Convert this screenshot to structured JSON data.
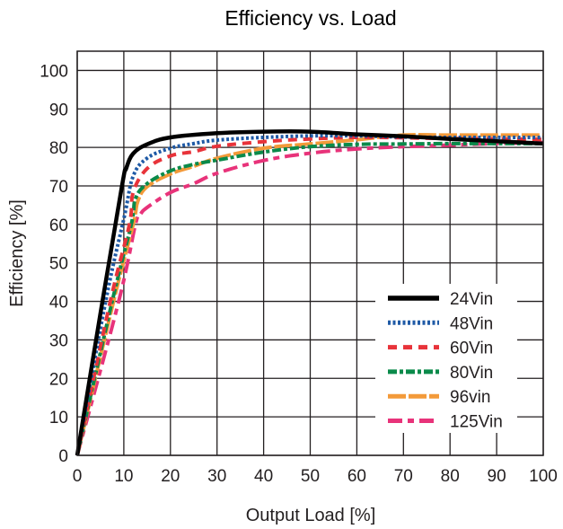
{
  "chart_data": {
    "type": "line",
    "title": "Efficiency vs. Load",
    "xlabel": "Output Load [%]",
    "ylabel": "Efficiency [%]",
    "xlim": [
      0,
      100
    ],
    "ylim": [
      0,
      105
    ],
    "xticks": [
      0,
      10,
      20,
      30,
      40,
      50,
      60,
      70,
      80,
      90,
      100
    ],
    "yticks": [
      0,
      10,
      20,
      30,
      40,
      50,
      60,
      70,
      80,
      90,
      100
    ],
    "xtick_labels": [
      "0",
      "10",
      "20",
      "30",
      "40",
      "50",
      "60",
      "70",
      "80",
      "90",
      "100"
    ],
    "ytick_labels": [
      "0",
      "10",
      "20",
      "30",
      "40",
      "50",
      "60",
      "70",
      "80",
      "90",
      "100"
    ],
    "grid": true,
    "legend_position": "lower-right",
    "series": [
      {
        "name": "24Vin",
        "color": "#000000",
        "dash": "solid",
        "x": [
          0,
          5,
          9.6,
          10.5,
          12,
          15,
          20,
          30,
          40,
          50,
          60,
          70,
          80,
          90,
          100
        ],
        "y": [
          0,
          37,
          70,
          74.5,
          78.4,
          80.8,
          82.6,
          83.7,
          84.1,
          84.1,
          83.4,
          82.9,
          82.2,
          81.6,
          81.0
        ]
      },
      {
        "name": "48Vin",
        "color": "#1f5aa6",
        "dash": "dotted",
        "x": [
          0,
          6.1,
          10.1,
          12,
          15,
          20,
          25,
          30,
          40,
          50,
          60,
          70,
          80,
          90,
          100
        ],
        "y": [
          0,
          40,
          62,
          72.5,
          77.2,
          79.8,
          81,
          81.9,
          82.6,
          83.0,
          83.0,
          82.7,
          82.6,
          82.6,
          82.6
        ]
      },
      {
        "name": "60Vin",
        "color": "#e8333a",
        "dash": "dashed",
        "x": [
          0,
          7.1,
          11.2,
          12,
          15,
          20,
          25,
          30,
          40,
          50,
          60,
          70,
          80,
          90,
          100
        ],
        "y": [
          0,
          40,
          60,
          68.3,
          74.5,
          77.8,
          78.9,
          80.3,
          81.5,
          82.2,
          82.6,
          82.5,
          82.3,
          82.2,
          82.1
        ]
      },
      {
        "name": "80Vin",
        "color": "#0a8a4a",
        "dash": "dash-dot",
        "x": [
          0,
          7.5,
          11.6,
          12.5,
          15,
          20,
          25,
          30,
          40,
          50,
          60,
          70,
          80,
          90,
          100
        ],
        "y": [
          0,
          40,
          60,
          66.7,
          70.6,
          73.9,
          75.6,
          76.7,
          78.8,
          80.2,
          80.8,
          80.9,
          81.0,
          81.0,
          81.0
        ]
      },
      {
        "name": "96vin",
        "color": "#f39a3a",
        "dash": "long-dash",
        "x": [
          0,
          7.8,
          12,
          13,
          15,
          20,
          25,
          30,
          40,
          50,
          60,
          70,
          80,
          90,
          100
        ],
        "y": [
          0,
          40,
          60,
          66,
          69.8,
          73.1,
          75.1,
          77.2,
          79.8,
          80.9,
          82.0,
          83.2,
          83.2,
          83.2,
          83.2
        ]
      },
      {
        "name": "125Vin",
        "color": "#e8337a",
        "dash": "dash-dot-long",
        "x": [
          0,
          8.9,
          12.5,
          13.5,
          15,
          20,
          25,
          30,
          40,
          50,
          60,
          70,
          80,
          90,
          100
        ],
        "y": [
          0,
          40,
          60,
          62.5,
          64.4,
          68.3,
          70.6,
          73.3,
          76.6,
          78.5,
          79.6,
          80.2,
          80.6,
          81.0,
          81.3
        ]
      }
    ]
  }
}
